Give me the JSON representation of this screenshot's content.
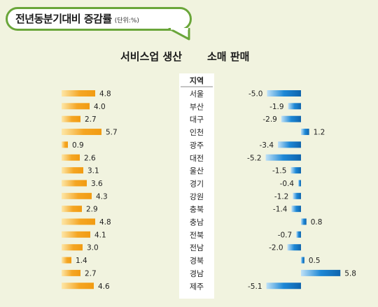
{
  "title": "전년동분기대비 증감률",
  "unit": "(단위:%)",
  "col_service": "서비스업 생산",
  "col_retail": "소매 판매",
  "region_header": "지역",
  "colors": {
    "service_bar": "#f5a623",
    "retail_bar": "#1e88d6",
    "bubble_border": "#6aa63a",
    "background": "#f1f3df"
  },
  "chart_data": {
    "type": "bar",
    "categories": [
      "서울",
      "부산",
      "대구",
      "인천",
      "광주",
      "대전",
      "울산",
      "경기",
      "강원",
      "충북",
      "충남",
      "전북",
      "전남",
      "경북",
      "경남",
      "제주"
    ],
    "series": [
      {
        "name": "서비스업 생산",
        "values": [
          4.8,
          4.0,
          2.7,
          5.7,
          0.9,
          2.6,
          3.1,
          3.6,
          4.3,
          2.9,
          4.8,
          4.1,
          3.0,
          1.4,
          2.7,
          4.6
        ]
      },
      {
        "name": "소매 판매",
        "values": [
          -5.0,
          -1.9,
          -2.9,
          1.2,
          -3.4,
          -5.2,
          -1.5,
          -0.4,
          -1.2,
          -1.4,
          0.8,
          -0.7,
          -2.0,
          0.5,
          5.8,
          -5.1
        ]
      }
    ]
  }
}
